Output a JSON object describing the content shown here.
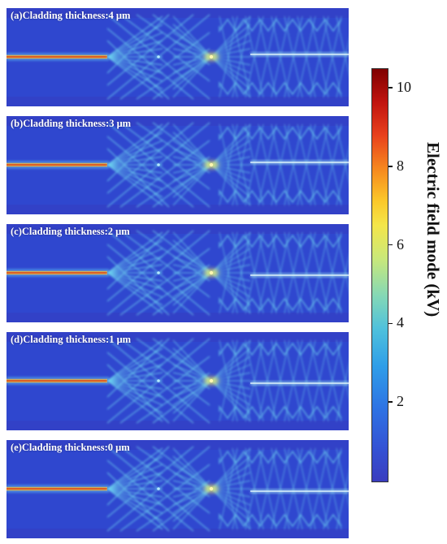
{
  "figure": {
    "panels": [
      {
        "label": "(a)Cladding thickness:4 μm",
        "cladding_um": 4
      },
      {
        "label": "(b)Cladding thickness:3 μm",
        "cladding_um": 3
      },
      {
        "label": "(c)Cladding thickness:2 μm",
        "cladding_um": 2
      },
      {
        "label": "(d)Cladding thickness:1 μm",
        "cladding_um": 1
      },
      {
        "label": "(e)Cladding thickness:0 μm",
        "cladding_um": 0
      }
    ],
    "colorbar": {
      "title": "Electric field mode (kV)",
      "ticks": [
        "10",
        "8",
        "6",
        "4",
        "2"
      ],
      "tick_values": [
        10,
        8,
        6,
        4,
        2
      ],
      "range": [
        0,
        10.5
      ],
      "colormap": "rainbow (blue → red)"
    },
    "colors": {
      "background_field": "#2f47cf",
      "input_core": "#d83a24",
      "hot_spot": "#fff38a",
      "interference": "#6fd6f0"
    }
  }
}
